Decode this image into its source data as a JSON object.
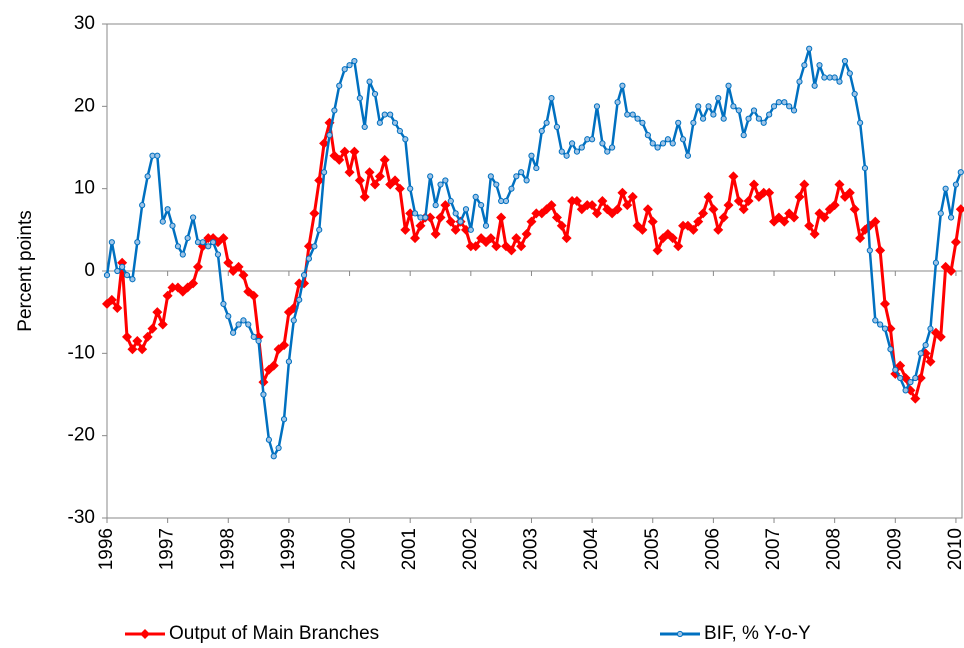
{
  "chart_data": {
    "type": "line",
    "ylabel": "Percent points",
    "xlim": [
      1996,
      2010.1
    ],
    "xticks": [
      1996,
      1997,
      1998,
      1999,
      2000,
      2001,
      2002,
      2003,
      2004,
      2005,
      2006,
      2007,
      2008,
      2009,
      2010
    ],
    "ylim": [
      -30,
      30
    ],
    "yticks": [
      -30,
      -20,
      -10,
      0,
      10,
      20,
      30
    ],
    "grid": false,
    "legend": "bottom",
    "x": [
      1996,
      1996.08,
      1996.17,
      1996.25,
      1996.33,
      1996.42,
      1996.5,
      1996.58,
      1996.67,
      1996.75,
      1996.83,
      1996.92,
      1997,
      1997.08,
      1997.17,
      1997.25,
      1997.33,
      1997.42,
      1997.5,
      1997.58,
      1997.67,
      1997.75,
      1997.83,
      1997.92,
      1998,
      1998.08,
      1998.17,
      1998.25,
      1998.33,
      1998.42,
      1998.5,
      1998.58,
      1998.67,
      1998.75,
      1998.83,
      1998.92,
      1999,
      1999.08,
      1999.17,
      1999.25,
      1999.33,
      1999.42,
      1999.5,
      1999.58,
      1999.67,
      1999.75,
      1999.83,
      1999.92,
      2000,
      2000.08,
      2000.17,
      2000.25,
      2000.33,
      2000.42,
      2000.5,
      2000.58,
      2000.67,
      2000.75,
      2000.83,
      2000.92,
      2001,
      2001.08,
      2001.17,
      2001.25,
      2001.33,
      2001.42,
      2001.5,
      2001.58,
      2001.67,
      2001.75,
      2001.83,
      2001.92,
      2002,
      2002.08,
      2002.17,
      2002.25,
      2002.33,
      2002.42,
      2002.5,
      2002.58,
      2002.67,
      2002.75,
      2002.83,
      2002.92,
      2003,
      2003.08,
      2003.17,
      2003.25,
      2003.33,
      2003.42,
      2003.5,
      2003.58,
      2003.67,
      2003.75,
      2003.83,
      2003.92,
      2004,
      2004.08,
      2004.17,
      2004.25,
      2004.33,
      2004.42,
      2004.5,
      2004.58,
      2004.67,
      2004.75,
      2004.83,
      2004.92,
      2005,
      2005.08,
      2005.17,
      2005.25,
      2005.33,
      2005.42,
      2005.5,
      2005.58,
      2005.67,
      2005.75,
      2005.83,
      2005.92,
      2006,
      2006.08,
      2006.17,
      2006.25,
      2006.33,
      2006.42,
      2006.5,
      2006.58,
      2006.67,
      2006.75,
      2006.83,
      2006.92,
      2007,
      2007.08,
      2007.17,
      2007.25,
      2007.33,
      2007.42,
      2007.5,
      2007.58,
      2007.67,
      2007.75,
      2007.83,
      2007.92,
      2008,
      2008.08,
      2008.17,
      2008.25,
      2008.33,
      2008.42,
      2008.5,
      2008.58,
      2008.67,
      2008.75,
      2008.83,
      2008.92,
      2009,
      2009.08,
      2009.17,
      2009.25,
      2009.33,
      2009.42,
      2009.5,
      2009.58,
      2009.67,
      2009.75,
      2009.83,
      2009.92,
      2010,
      2010.08
    ],
    "series": [
      {
        "name": "Output of Main Branches",
        "color": "#ff0000",
        "marker": "diamond",
        "values": [
          -4,
          -3.5,
          -4.5,
          1,
          -8,
          -9.5,
          -8.5,
          -9.5,
          -8,
          -7,
          -5,
          -6.5,
          -3,
          -2,
          -2,
          -2.5,
          -2,
          -1.5,
          0.5,
          3,
          4,
          4,
          3.5,
          4,
          1,
          0,
          0.5,
          -0.5,
          -2.5,
          -3,
          -8,
          -13.5,
          -12,
          -11.5,
          -9.5,
          -9,
          -5,
          -4.5,
          -1.5,
          -1.5,
          3,
          7,
          11,
          15.5,
          18,
          14,
          13.5,
          14.5,
          12,
          14.5,
          11,
          9,
          12,
          10.5,
          11.5,
          13.5,
          10.5,
          11,
          10,
          5,
          7,
          4,
          5.5,
          6.5,
          6.5,
          4.5,
          6.5,
          8,
          6,
          5,
          6,
          5,
          3,
          3,
          4,
          3.5,
          4,
          3,
          6.5,
          3,
          2.5,
          4,
          3,
          4.5,
          6,
          7,
          7,
          7.5,
          8,
          6.5,
          5.5,
          4,
          8.5,
          8.5,
          7.5,
          8,
          8,
          7,
          8.5,
          7.5,
          7,
          7.5,
          9.5,
          8,
          9,
          5.5,
          5,
          7.5,
          6,
          2.5,
          4,
          4.5,
          4,
          3,
          5.5,
          5.5,
          5,
          6,
          7,
          9,
          7.5,
          5,
          6.5,
          8,
          11.5,
          8.5,
          7.5,
          8.5,
          10.5,
          9,
          9.5,
          9.5,
          6,
          6.5,
          6,
          7,
          6.5,
          9,
          10.5,
          5.5,
          4.5,
          7,
          6.5,
          7.5,
          8,
          10.5,
          9,
          9.5,
          7.5,
          4,
          5,
          5.5,
          6,
          2.5,
          -4,
          -7,
          -12.5,
          -11.5,
          -13,
          -14.5,
          -15.5,
          -13,
          -10,
          -11,
          -7.5,
          -8,
          0.5,
          0,
          3.5,
          7.5
        ]
      },
      {
        "name": "BIF, % Y-o-Y",
        "color": "#0070c0",
        "marker": "circle",
        "values": [
          -0.5,
          3.5,
          0,
          0.5,
          -0.5,
          -1,
          3.5,
          8,
          11.5,
          14,
          14,
          6,
          7.5,
          5.5,
          3,
          2,
          4,
          6.5,
          3.5,
          3.5,
          3,
          3.5,
          2,
          -4,
          -5.5,
          -7.5,
          -6.5,
          -6,
          -6.5,
          -8,
          -8.5,
          -15,
          -20.5,
          -22.5,
          -21.5,
          -18,
          -11,
          -6,
          -3.5,
          -0.5,
          1.5,
          3,
          5,
          12,
          16.5,
          19.5,
          22.5,
          24.5,
          25,
          25.5,
          21,
          17.5,
          23,
          21.5,
          18,
          19,
          19,
          18,
          17,
          16,
          10,
          7,
          6.5,
          6.5,
          11.5,
          8,
          10.5,
          11,
          8.5,
          7,
          6,
          7.5,
          5,
          9,
          8,
          5.5,
          11.5,
          10.5,
          8.5,
          8.5,
          10,
          11.5,
          12,
          11,
          14,
          12.5,
          17,
          18,
          21,
          17.5,
          14.5,
          14,
          15.5,
          14.5,
          15,
          16,
          16,
          20,
          15.5,
          14.5,
          15,
          20.5,
          22.5,
          19,
          19,
          18.5,
          18,
          16.5,
          15.5,
          15,
          15.5,
          16,
          15.5,
          18,
          16,
          14,
          18,
          20,
          18.5,
          20,
          19,
          21,
          18.5,
          22.5,
          20,
          19.5,
          16.5,
          18.5,
          19.5,
          18.5,
          18,
          19,
          20,
          20.5,
          20.5,
          20,
          19.5,
          23,
          25,
          27,
          22.5,
          25,
          23.5,
          23.5,
          23.5,
          23,
          25.5,
          24,
          21.5,
          18,
          12.5,
          2.5,
          -6,
          -6.5,
          -7,
          -9.5,
          -12,
          -13,
          -14.5,
          -13.5,
          -13,
          -10,
          -9,
          -7,
          1,
          7,
          10,
          6.5,
          10.5,
          12
        ]
      }
    ]
  }
}
